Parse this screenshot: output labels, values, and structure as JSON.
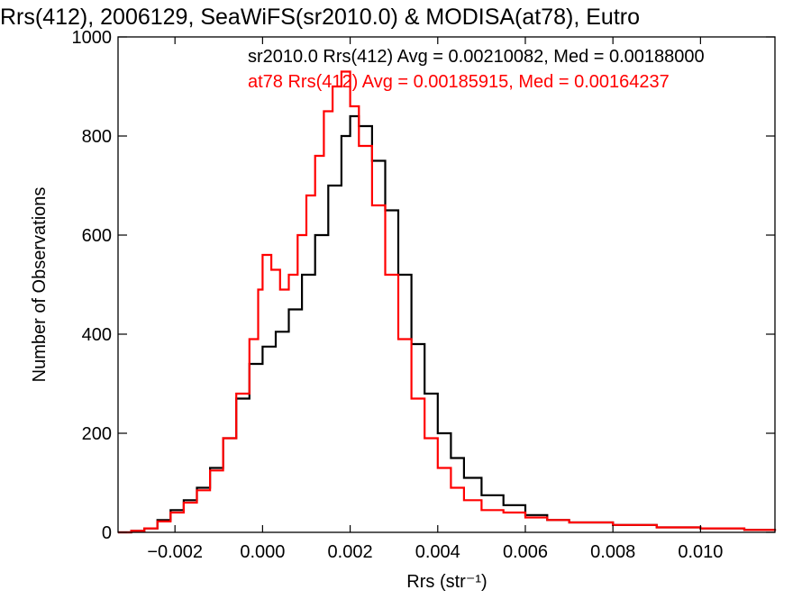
{
  "chart_data": {
    "type": "line",
    "title": "Rrs(412), 2006129, SeaWiFS(sr2010.0) & MODISA(at78), Eutro",
    "xlabel": "Rrs (str⁻¹)",
    "ylabel": "Number of Observations",
    "xlim": [
      -0.0033,
      0.0117
    ],
    "ylim": [
      0,
      1000
    ],
    "x_ticks": [
      -0.002,
      0.0,
      0.002,
      0.004,
      0.006,
      0.008,
      0.01
    ],
    "x_tick_labels": [
      "−0.002",
      "0.000",
      "0.002",
      "0.004",
      "0.006",
      "0.008",
      "0.010"
    ],
    "y_ticks": [
      0,
      200,
      400,
      600,
      800,
      1000
    ],
    "y_tick_labels": [
      "0",
      "200",
      "400",
      "600",
      "800",
      "1000"
    ],
    "grid": false,
    "legend_placement": "top",
    "series": [
      {
        "name": "sr2010.0",
        "stat_label": "sr2010.0 Rrs(412) Avg = 0.00210082, Med = 0.00188000",
        "color": "#000000",
        "points": [
          [
            -0.0033,
            0
          ],
          [
            -0.003,
            3
          ],
          [
            -0.0027,
            8
          ],
          [
            -0.0024,
            25
          ],
          [
            -0.0021,
            45
          ],
          [
            -0.0018,
            65
          ],
          [
            -0.0015,
            90
          ],
          [
            -0.0012,
            130
          ],
          [
            -0.0009,
            190
          ],
          [
            -0.0006,
            270
          ],
          [
            -0.0003,
            340
          ],
          [
            0.0,
            375
          ],
          [
            0.0003,
            405
          ],
          [
            0.0006,
            450
          ],
          [
            0.0009,
            520
          ],
          [
            0.0012,
            600
          ],
          [
            0.0015,
            700
          ],
          [
            0.0018,
            800
          ],
          [
            0.002,
            840
          ],
          [
            0.0022,
            820
          ],
          [
            0.0025,
            750
          ],
          [
            0.0028,
            650
          ],
          [
            0.0031,
            520
          ],
          [
            0.0034,
            380
          ],
          [
            0.0037,
            280
          ],
          [
            0.004,
            200
          ],
          [
            0.0043,
            150
          ],
          [
            0.0046,
            110
          ],
          [
            0.005,
            75
          ],
          [
            0.0055,
            55
          ],
          [
            0.006,
            35
          ],
          [
            0.0065,
            25
          ],
          [
            0.007,
            20
          ],
          [
            0.008,
            15
          ],
          [
            0.009,
            10
          ],
          [
            0.01,
            8
          ],
          [
            0.011,
            5
          ],
          [
            0.0117,
            3
          ]
        ]
      },
      {
        "name": "at78",
        "stat_label": "at78 Rrs(412) Avg = 0.00185915, Med = 0.00164237",
        "color": "#ff0000",
        "points": [
          [
            -0.0033,
            0
          ],
          [
            -0.003,
            3
          ],
          [
            -0.0027,
            8
          ],
          [
            -0.0024,
            22
          ],
          [
            -0.0021,
            40
          ],
          [
            -0.0018,
            60
          ],
          [
            -0.0015,
            85
          ],
          [
            -0.0012,
            125
          ],
          [
            -0.0009,
            190
          ],
          [
            -0.0006,
            280
          ],
          [
            -0.0003,
            390
          ],
          [
            -0.0001,
            490
          ],
          [
            0.0,
            560
          ],
          [
            0.0002,
            530
          ],
          [
            0.0004,
            490
          ],
          [
            0.0006,
            520
          ],
          [
            0.0008,
            600
          ],
          [
            0.001,
            680
          ],
          [
            0.0012,
            760
          ],
          [
            0.0014,
            850
          ],
          [
            0.0016,
            900
          ],
          [
            0.0018,
            930
          ],
          [
            0.002,
            860
          ],
          [
            0.0022,
            780
          ],
          [
            0.0025,
            660
          ],
          [
            0.0028,
            520
          ],
          [
            0.0031,
            390
          ],
          [
            0.0034,
            270
          ],
          [
            0.0037,
            190
          ],
          [
            0.004,
            130
          ],
          [
            0.0043,
            90
          ],
          [
            0.0046,
            65
          ],
          [
            0.005,
            45
          ],
          [
            0.0055,
            40
          ],
          [
            0.006,
            30
          ],
          [
            0.0065,
            25
          ],
          [
            0.007,
            20
          ],
          [
            0.008,
            15
          ],
          [
            0.009,
            10
          ],
          [
            0.01,
            8
          ],
          [
            0.011,
            5
          ],
          [
            0.0117,
            3
          ]
        ]
      }
    ]
  }
}
